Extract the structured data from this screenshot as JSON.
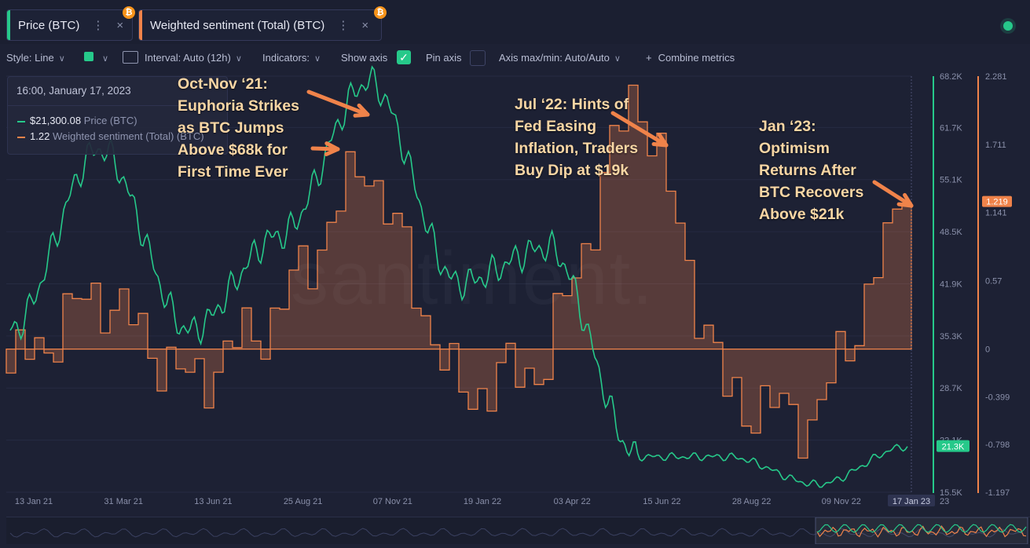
{
  "tabs": [
    {
      "label": "Price (BTC)",
      "accent": "#26c98a",
      "icon": "bitcoin-icon"
    },
    {
      "label": "Weighted sentiment (Total) (BTC)",
      "accent": "#f0834a",
      "icon": "bitcoin-icon"
    }
  ],
  "toolbar": {
    "style_label": "Style: Line",
    "interval_label": "Interval: Auto (12h)",
    "indicators_label": "Indicators:",
    "show_axis_label": "Show axis",
    "show_axis_checked": true,
    "pin_axis_label": "Pin axis",
    "pin_axis_checked": false,
    "axis_label": "Axis max/min: Auto/Auto",
    "combine_label": "Combine metrics"
  },
  "tooltip": {
    "date": "16:00, January 17, 2023",
    "price_value": "$21,300.08",
    "price_name": "Price (BTC)",
    "sentiment_value": "1.22",
    "sentiment_name": "Weighted sentiment (Total) (BTC)"
  },
  "annotations": [
    [
      "Oct-Nov ‘21:",
      "Euphoria Strikes",
      "as BTC Jumps",
      "Above $68k for",
      "First Time Ever"
    ],
    [
      "Jul ‘22: Hints of",
      "Fed Easing",
      "Inflation, Traders",
      "Buy Dip at $19k"
    ],
    [
      "Jan ‘23:",
      "Optimism",
      "Returns After",
      "BTC Recovers",
      "Above $21k"
    ]
  ],
  "watermark": "santiment.",
  "colors": {
    "price": "#26c98a",
    "sentiment": "#f0834a",
    "background": "#1d2134"
  },
  "chart_data": {
    "type": "line",
    "x": [
      "13 Jan 21",
      "31 Mar 21",
      "13 Jun 21",
      "25 Aug 21",
      "07 Nov 21",
      "19 Jan 22",
      "03 Apr 22",
      "15 Jun 22",
      "28 Aug 22",
      "09 Nov 22",
      "17 Jan 23"
    ],
    "x_axis_extra_label": "23",
    "series": [
      {
        "name": "Price (BTC)",
        "axis": "left",
        "values": [
          36000,
          59000,
          36000,
          48000,
          67500,
          42000,
          46500,
          20000,
          20000,
          16500,
          21300
        ],
        "last_value_label": "21.3K"
      },
      {
        "name": "Weighted sentiment (Total) (BTC)",
        "axis": "right",
        "style": "step-area",
        "values": [
          -0.2,
          0.5,
          -0.3,
          0.3,
          1.6,
          -0.4,
          -0.1,
          2.24,
          -0.4,
          -0.6,
          1.22
        ],
        "last_value_label": "1.219"
      }
    ],
    "left_axis_ticks": [
      "68.2K",
      "61.7K",
      "55.1K",
      "48.5K",
      "41.9K",
      "35.3K",
      "28.7K",
      "22.1K",
      "15.5K"
    ],
    "right_axis_ticks": [
      "2.281",
      "1.711",
      "1.141",
      "0.57",
      "0",
      "-0.399",
      "-0.798",
      "-1.197"
    ],
    "crosshair_date": "17 Jan 23",
    "ylim_left": [
      15500,
      68200
    ],
    "ylim_right": [
      -1.197,
      2.281
    ]
  }
}
